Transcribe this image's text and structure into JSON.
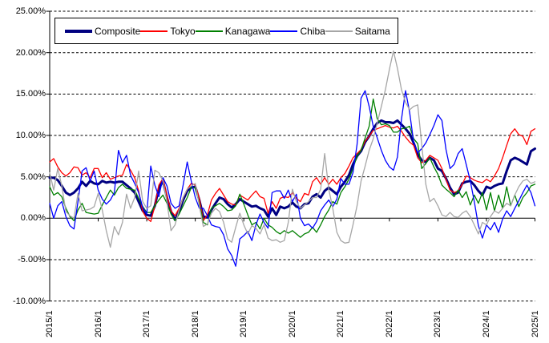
{
  "page": {
    "background": "#ffffff"
  },
  "chart_data": {
    "type": "line",
    "title": "",
    "x_axis": {
      "start": "2015/1",
      "end": "2025/1",
      "interval": "monthly",
      "tick_labels": [
        "2015/1",
        "2016/1",
        "2017/1",
        "2018/1",
        "2019/1",
        "2020/1",
        "2021/1",
        "2022/1",
        "2023/1",
        "2024/1",
        "2025/1"
      ]
    },
    "y_axis": {
      "unit": "%",
      "min": -10,
      "max": 25,
      "tick_values": [
        25,
        20,
        15,
        10,
        5,
        0,
        -5,
        -10
      ],
      "tick_labels": [
        "25.00%",
        "20.00%",
        "15.00%",
        "10.00%",
        "5.00%",
        "0.00%",
        "-5.00%",
        "-10.00%"
      ]
    },
    "grid": {
      "gridlines_dashed": true,
      "zero_line_solid": true,
      "axis_color": "#000000"
    },
    "legend": {
      "position": "top-left",
      "border": true,
      "background": "#ffffff"
    },
    "series": [
      {
        "name": "Composite",
        "color": "#000080",
        "width": 3,
        "values": [
          4.9,
          4.9,
          4.6,
          3.9,
          3.1,
          2.8,
          3.1,
          3.6,
          4.4,
          3.9,
          4.5,
          4.2,
          4.1,
          4.5,
          4.3,
          4.4,
          4.3,
          4.4,
          4.4,
          4.0,
          3.6,
          3.1,
          2.0,
          0.9,
          0.4,
          0.3,
          1.5,
          3.6,
          4.5,
          2.5,
          0.8,
          -0.2,
          0.8,
          2.2,
          3.3,
          3.7,
          3.8,
          2.2,
          0.2,
          0.1,
          1.0,
          1.8,
          2.5,
          2.3,
          1.7,
          1.3,
          1.7,
          2.3,
          2.0,
          1.7,
          1.4,
          1.5,
          1.2,
          1.0,
          0.2,
          1.2,
          0.4,
          1.4,
          1.2,
          1.4,
          1.9,
          1.4,
          1.2,
          1.7,
          1.8,
          2.6,
          2.9,
          2.5,
          3.3,
          3.7,
          3.3,
          2.9,
          3.8,
          4.4,
          5.2,
          6.5,
          7.5,
          8.1,
          9.2,
          9.9,
          10.8,
          11.5,
          11.8,
          11.6,
          11.6,
          11.5,
          11.8,
          11.3,
          10.8,
          10.2,
          9.1,
          7.7,
          7.0,
          6.8,
          7.3,
          7.0,
          6.0,
          5.7,
          4.8,
          3.7,
          2.9,
          3.1,
          4.2,
          4.4,
          4.5,
          4.0,
          3.3,
          2.8,
          3.8,
          3.6,
          3.9,
          4.1,
          4.2,
          5.7,
          7.0,
          7.3,
          7.1,
          6.8,
          6.5,
          8.1,
          8.4
        ]
      },
      {
        "name": "Tokyo",
        "color": "#FF0000",
        "width": 1.3,
        "values": [
          6.8,
          7.2,
          6.2,
          5.5,
          5.1,
          5.5,
          6.2,
          6.1,
          5.2,
          5.5,
          4.9,
          6.0,
          6.0,
          4.9,
          5.5,
          4.7,
          4.9,
          5.1,
          5.2,
          6.5,
          5.8,
          4.9,
          3.3,
          0.8,
          0.0,
          -0.4,
          1.5,
          4.0,
          4.8,
          2.7,
          0.9,
          0.3,
          1.2,
          2.5,
          3.5,
          4.2,
          4.0,
          2.4,
          -0.3,
          0.4,
          2.2,
          3.0,
          3.6,
          2.8,
          2.0,
          1.7,
          1.6,
          2.8,
          2.5,
          2.2,
          2.8,
          3.3,
          2.6,
          2.4,
          0.6,
          2.0,
          1.2,
          2.4,
          2.6,
          2.5,
          3.1,
          2.4,
          2.0,
          3.0,
          2.8,
          4.4,
          4.9,
          4.1,
          4.9,
          4.1,
          4.7,
          4.1,
          4.9,
          5.4,
          6.3,
          7.3,
          7.8,
          8.3,
          9.3,
          9.9,
          10.6,
          10.8,
          11.0,
          11.2,
          11.0,
          10.9,
          11.1,
          10.5,
          9.8,
          9.2,
          8.8,
          7.3,
          6.7,
          7.0,
          7.6,
          7.3,
          7.0,
          6.0,
          4.7,
          3.4,
          3.1,
          3.3,
          4.1,
          5.1,
          4.9,
          4.6,
          4.4,
          4.3,
          4.7,
          4.4,
          5.1,
          6.0,
          7.3,
          8.8,
          10.2,
          10.8,
          10.1,
          9.9,
          8.9,
          10.5,
          10.8
        ]
      },
      {
        "name": "Kanagawa",
        "color": "#008000",
        "width": 1.3,
        "values": [
          3.8,
          2.8,
          3.1,
          2.6,
          1.2,
          0.2,
          -0.3,
          1.0,
          1.8,
          0.7,
          0.6,
          0.5,
          0.6,
          1.6,
          2.5,
          3.4,
          2.8,
          3.7,
          4.1,
          3.6,
          3.5,
          3.4,
          2.4,
          1.4,
          0.7,
          0.7,
          1.5,
          2.2,
          2.8,
          1.8,
          0.5,
          -0.3,
          0.5,
          1.5,
          2.5,
          3.7,
          3.7,
          1.8,
          -0.5,
          -0.8,
          1.2,
          1.5,
          1.8,
          1.4,
          0.9,
          1.0,
          1.5,
          2.9,
          1.7,
          0.4,
          -0.8,
          -0.5,
          -1.3,
          0.0,
          -0.8,
          -1.1,
          -1.6,
          -1.9,
          -1.5,
          -1.8,
          -1.5,
          -1.9,
          -2.3,
          -1.9,
          -1.7,
          -1.1,
          -1.7,
          -0.8,
          0.2,
          1.0,
          2.0,
          1.7,
          3.1,
          3.8,
          4.7,
          6.0,
          7.5,
          8.2,
          9.7,
          11.1,
          14.4,
          12.0,
          11.3,
          11.4,
          11.2,
          10.4,
          10.4,
          10.8,
          10.9,
          11.1,
          9.6,
          9.0,
          6.0,
          6.6,
          7.3,
          6.2,
          5.3,
          4.0,
          3.5,
          3.1,
          2.6,
          3.4,
          2.5,
          3.2,
          1.6,
          2.8,
          1.8,
          3.1,
          1.0,
          3.1,
          0.9,
          2.8,
          1.2,
          3.8,
          1.5,
          2.8,
          1.4,
          2.5,
          3.1,
          3.9,
          4.1
        ]
      },
      {
        "name": "Chiba",
        "color": "#0000FF",
        "width": 1.3,
        "values": [
          1.8,
          0.0,
          1.5,
          2.0,
          0.2,
          -0.9,
          -1.3,
          2.0,
          5.7,
          6.1,
          4.5,
          5.7,
          3.4,
          2.3,
          1.7,
          2.2,
          3.1,
          8.2,
          6.7,
          7.6,
          5.2,
          4.2,
          3.1,
          1.3,
          0.5,
          6.3,
          4.0,
          2.6,
          4.9,
          3.9,
          1.8,
          1.2,
          1.5,
          4.0,
          6.8,
          4.5,
          2.5,
          1.2,
          1.2,
          0.3,
          -0.8,
          -1.0,
          -1.1,
          -2.0,
          -3.7,
          -4.5,
          -5.8,
          -2.5,
          -2.1,
          -1.6,
          -2.7,
          -0.8,
          0.5,
          -0.5,
          -1.2,
          3.1,
          3.3,
          3.3,
          2.4,
          3.4,
          2.0,
          2.9,
          0.0,
          -0.9,
          -0.7,
          -1.2,
          -0.4,
          0.9,
          1.6,
          2.2,
          1.4,
          2.3,
          4.8,
          4.1,
          4.1,
          5.5,
          8.9,
          14.5,
          15.4,
          13.5,
          11.1,
          9.7,
          8.2,
          7.0,
          6.2,
          5.8,
          7.4,
          12.0,
          15.4,
          12.8,
          9.2,
          7.9,
          8.4,
          9.1,
          10.1,
          11.2,
          12.5,
          11.8,
          8.3,
          6.0,
          6.5,
          7.8,
          8.4,
          6.5,
          4.5,
          2.0,
          -0.9,
          -2.4,
          -0.8,
          -1.4,
          -0.5,
          -1.7,
          -0.1,
          0.9,
          0.2,
          1.2,
          2.1,
          3.1,
          4.0,
          3.1,
          1.5
        ]
      },
      {
        "name": "Saitama",
        "color": "#A6A6A6",
        "width": 1.3,
        "values": [
          5.5,
          3.4,
          6.0,
          3.9,
          0.8,
          0.3,
          0.0,
          3.0,
          0.9,
          1.0,
          1.1,
          1.4,
          3.0,
          1.0,
          -1.5,
          -3.5,
          -1.0,
          -2.0,
          -0.5,
          2.9,
          1.2,
          2.5,
          5.7,
          2.0,
          1.2,
          1.5,
          5.8,
          5.5,
          4.5,
          2.0,
          -1.5,
          -0.8,
          1.0,
          2.5,
          3.5,
          3.9,
          4.2,
          1.5,
          -1.0,
          -0.7,
          0.6,
          1.2,
          0.8,
          -0.5,
          -2.5,
          -2.9,
          -1.1,
          0.6,
          -0.8,
          -1.9,
          -0.9,
          -1.2,
          -1.9,
          -0.8,
          -2.4,
          -2.7,
          -2.6,
          -2.9,
          -2.7,
          -0.5,
          3.5,
          2.0,
          1.2,
          1.6,
          2.0,
          2.5,
          2.5,
          3.5,
          7.8,
          3.5,
          1.2,
          -1.7,
          -2.7,
          -3.0,
          -2.9,
          -0.8,
          1.5,
          4.5,
          6.3,
          8.2,
          9.6,
          11.5,
          13.5,
          15.5,
          18.0,
          20.2,
          18.1,
          15.5,
          14.0,
          13.1,
          13.5,
          13.7,
          8.9,
          4.1,
          2.0,
          2.4,
          1.5,
          0.4,
          0.2,
          0.7,
          0.2,
          0.1,
          0.6,
          0.9,
          0.2,
          -0.8,
          -1.9,
          -0.5,
          -0.8,
          0.2,
          0.9,
          0.6,
          1.2,
          1.8,
          1.5,
          2.8,
          3.8,
          4.5,
          4.7,
          4.2,
          4.4
        ]
      }
    ]
  }
}
